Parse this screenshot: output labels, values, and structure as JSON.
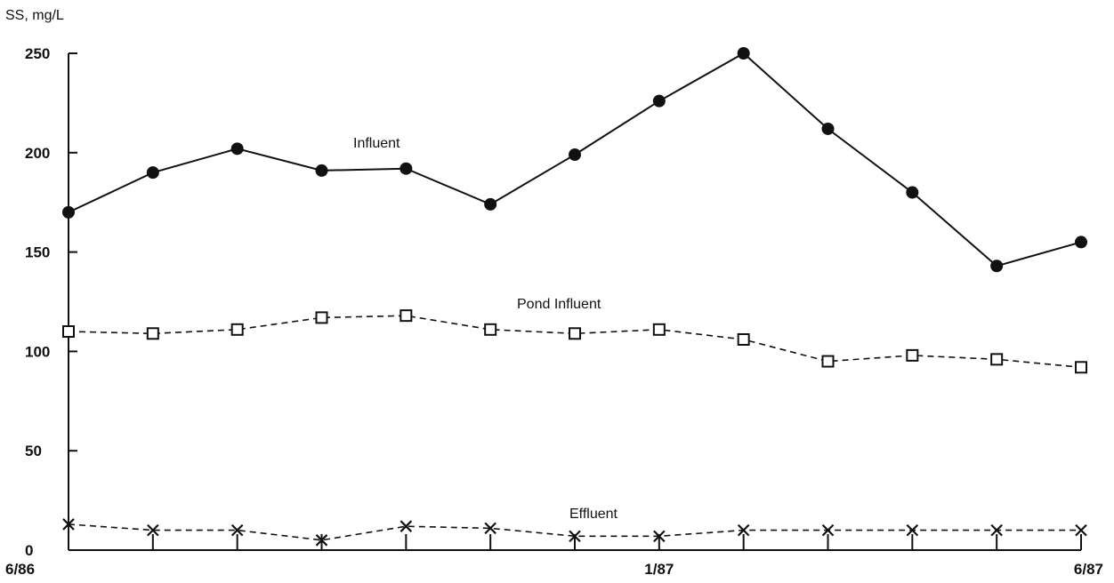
{
  "chart_data": {
    "type": "line",
    "title": "",
    "ylabel": "SS, mg/L",
    "xlabel": "",
    "ylim": [
      0,
      250
    ],
    "yticks": [
      0,
      50,
      100,
      150,
      200,
      250
    ],
    "ytick_labels": [
      "0",
      "50",
      "100",
      "150",
      "200",
      "250"
    ],
    "x": [
      0,
      1,
      2,
      3,
      4,
      5,
      6,
      7,
      8,
      9,
      10,
      11,
      12
    ],
    "x_tick_labels": [
      "6/86",
      "1/87",
      "6/87"
    ],
    "x_tick_label_positions": [
      0,
      7,
      12
    ],
    "grid": false,
    "series": [
      {
        "name": "Influent",
        "line_style": "solid",
        "marker": "filled-circle",
        "color": "#111111",
        "values": [
          170,
          190,
          202,
          191,
          192,
          174,
          199,
          226,
          250,
          212,
          180,
          143,
          155
        ]
      },
      {
        "name": "Pond Influent",
        "line_style": "dashed",
        "marker": "open-square",
        "color": "#111111",
        "values": [
          110,
          109,
          111,
          117,
          118,
          111,
          109,
          111,
          106,
          95,
          98,
          96,
          92
        ]
      },
      {
        "name": "Effluent",
        "line_style": "dashed",
        "marker": "x",
        "color": "#111111",
        "values": [
          13,
          10,
          10,
          5,
          12,
          11,
          7,
          7,
          10,
          10,
          10,
          10,
          10
        ]
      }
    ]
  }
}
